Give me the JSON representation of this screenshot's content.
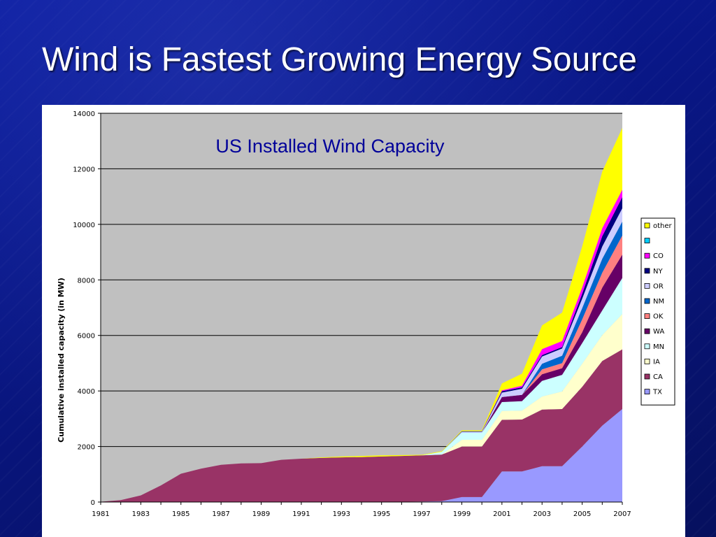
{
  "slide": {
    "title": "Wind is Fastest Growing Energy Source"
  },
  "chart_data": {
    "type": "area",
    "stacked": true,
    "title": "US Installed Wind Capacity",
    "xlabel": "",
    "ylabel": "Cumulative installed capacity (in MW)",
    "ylim": [
      0,
      14000
    ],
    "xlim": [
      1981,
      2007
    ],
    "grid": "horizontal",
    "legend_position": "right",
    "x": [
      1981,
      1982,
      1983,
      1984,
      1985,
      1986,
      1987,
      1988,
      1989,
      1990,
      1991,
      1992,
      1993,
      1994,
      1995,
      1996,
      1997,
      1998,
      1999,
      2000,
      2001,
      2002,
      2003,
      2004,
      2005,
      2006,
      2007
    ],
    "x_tick_labels": [
      "1981",
      "1983",
      "1985",
      "1987",
      "1989",
      "1991",
      "1993",
      "1995",
      "1997",
      "1999",
      "2001",
      "2003",
      "2005",
      "2007"
    ],
    "y_tick_labels": [
      "0",
      "2000",
      "4000",
      "6000",
      "8000",
      "10000",
      "12000",
      "14000"
    ],
    "series": [
      {
        "name": "TX",
        "color": "#9999ff",
        "values": [
          0,
          0,
          0,
          0,
          0,
          0,
          0,
          0,
          0,
          0,
          0,
          0,
          0,
          0,
          0,
          10,
          20,
          30,
          180,
          180,
          1100,
          1100,
          1290,
          1290,
          2000,
          2750,
          3350
        ]
      },
      {
        "name": "CA",
        "color": "#993366",
        "values": [
          10,
          70,
          240,
          600,
          1020,
          1200,
          1340,
          1390,
          1400,
          1520,
          1560,
          1590,
          1610,
          1620,
          1640,
          1650,
          1660,
          1680,
          1820,
          1820,
          1860,
          1870,
          2040,
          2060,
          2150,
          2330,
          2150
        ]
      },
      {
        "name": "IA",
        "color": "#ffffcc",
        "values": [
          0,
          0,
          0,
          0,
          0,
          0,
          0,
          0,
          0,
          0,
          0,
          0,
          0,
          0,
          0,
          0,
          0,
          0,
          240,
          240,
          320,
          320,
          470,
          630,
          830,
          930,
          1270
        ]
      },
      {
        "name": "MN",
        "color": "#ccffff",
        "values": [
          0,
          0,
          0,
          0,
          0,
          0,
          0,
          0,
          0,
          0,
          0,
          0,
          0,
          0,
          0,
          0,
          0,
          100,
          260,
          260,
          320,
          340,
          560,
          600,
          740,
          890,
          1300
        ]
      },
      {
        "name": "WA",
        "color": "#660066",
        "values": [
          0,
          0,
          0,
          0,
          0,
          0,
          0,
          0,
          0,
          0,
          0,
          0,
          0,
          0,
          0,
          0,
          0,
          0,
          0,
          0,
          180,
          230,
          240,
          240,
          390,
          820,
          840
        ]
      },
      {
        "name": "OK",
        "color": "#ff8080",
        "values": [
          0,
          0,
          0,
          0,
          0,
          0,
          0,
          0,
          0,
          0,
          0,
          0,
          0,
          0,
          0,
          0,
          0,
          0,
          0,
          0,
          0,
          0,
          180,
          180,
          470,
          540,
          690
        ]
      },
      {
        "name": "NM",
        "color": "#0066cc",
        "values": [
          0,
          0,
          0,
          0,
          0,
          0,
          0,
          0,
          0,
          0,
          0,
          0,
          0,
          0,
          0,
          0,
          0,
          0,
          0,
          0,
          0,
          0,
          200,
          270,
          400,
          500,
          500
        ]
      },
      {
        "name": "OR",
        "color": "#ccccff",
        "values": [
          0,
          0,
          0,
          0,
          0,
          0,
          0,
          0,
          0,
          0,
          0,
          0,
          0,
          0,
          0,
          0,
          0,
          0,
          30,
          30,
          160,
          220,
          260,
          260,
          340,
          440,
          480
        ]
      },
      {
        "name": "NY",
        "color": "#000080",
        "values": [
          0,
          0,
          0,
          0,
          0,
          0,
          0,
          0,
          0,
          0,
          0,
          0,
          0,
          0,
          0,
          0,
          0,
          0,
          20,
          20,
          50,
          50,
          50,
          50,
          180,
          370,
          400
        ]
      },
      {
        "name": "CO",
        "color": "#ff00ff",
        "values": [
          0,
          0,
          0,
          0,
          0,
          0,
          0,
          0,
          0,
          0,
          0,
          0,
          0,
          0,
          0,
          0,
          0,
          0,
          0,
          0,
          30,
          60,
          220,
          220,
          230,
          290,
          270
        ]
      },
      {
        "name": "",
        "color": "#00ccff",
        "values": [
          0,
          0,
          0,
          0,
          0,
          0,
          0,
          0,
          0,
          0,
          0,
          0,
          0,
          0,
          0,
          0,
          0,
          0,
          0,
          0,
          0,
          0,
          0,
          0,
          0,
          0,
          0
        ]
      },
      {
        "name": "other",
        "color": "#ffff00",
        "values": [
          0,
          0,
          0,
          0,
          0,
          0,
          0,
          0,
          0,
          0,
          0,
          20,
          30,
          40,
          40,
          30,
          20,
          20,
          30,
          30,
          250,
          430,
          850,
          1020,
          1470,
          2040,
          2220
        ]
      }
    ]
  }
}
